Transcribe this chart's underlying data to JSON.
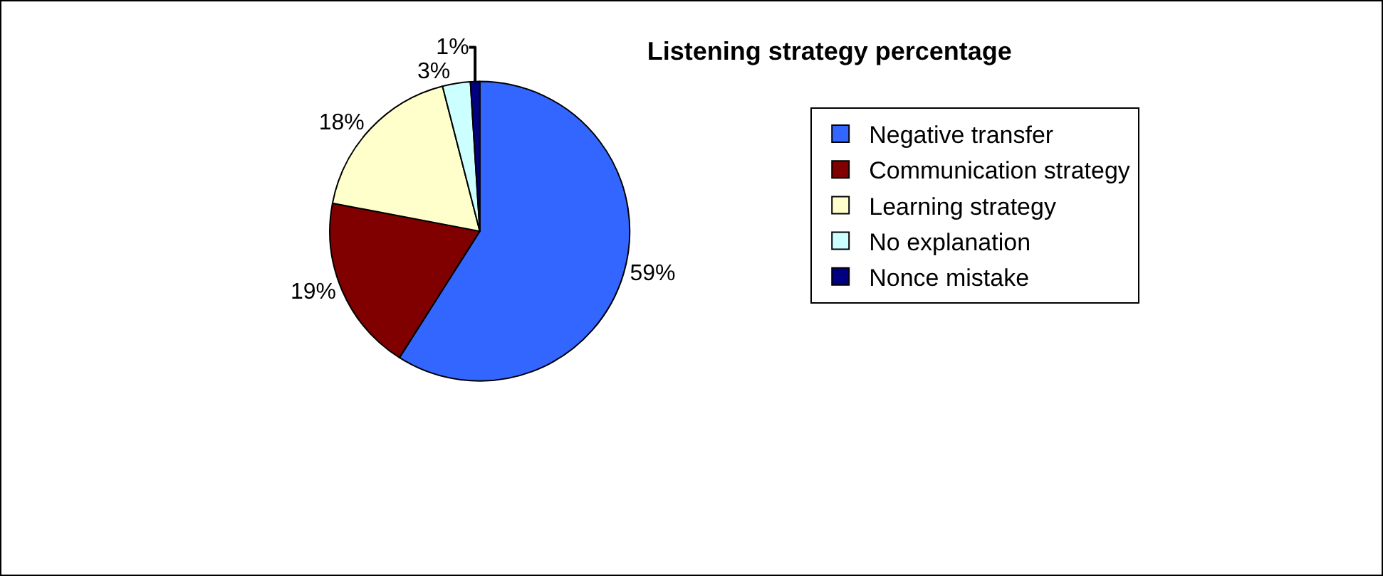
{
  "chart_data": {
    "type": "pie",
    "title": "Listening strategy percentage",
    "categories": [
      "Negative transfer",
      "Communication strategy",
      "Learning strategy",
      "No explanation",
      "Nonce mistake"
    ],
    "values": [
      59,
      19,
      18,
      3,
      1
    ],
    "colors": [
      "#3366ff",
      "#800000",
      "#ffffcc",
      "#ccffff",
      "#000080"
    ],
    "value_labels": [
      "59%",
      "19%",
      "18%",
      "3%",
      "1%"
    ],
    "legend": "top right"
  }
}
